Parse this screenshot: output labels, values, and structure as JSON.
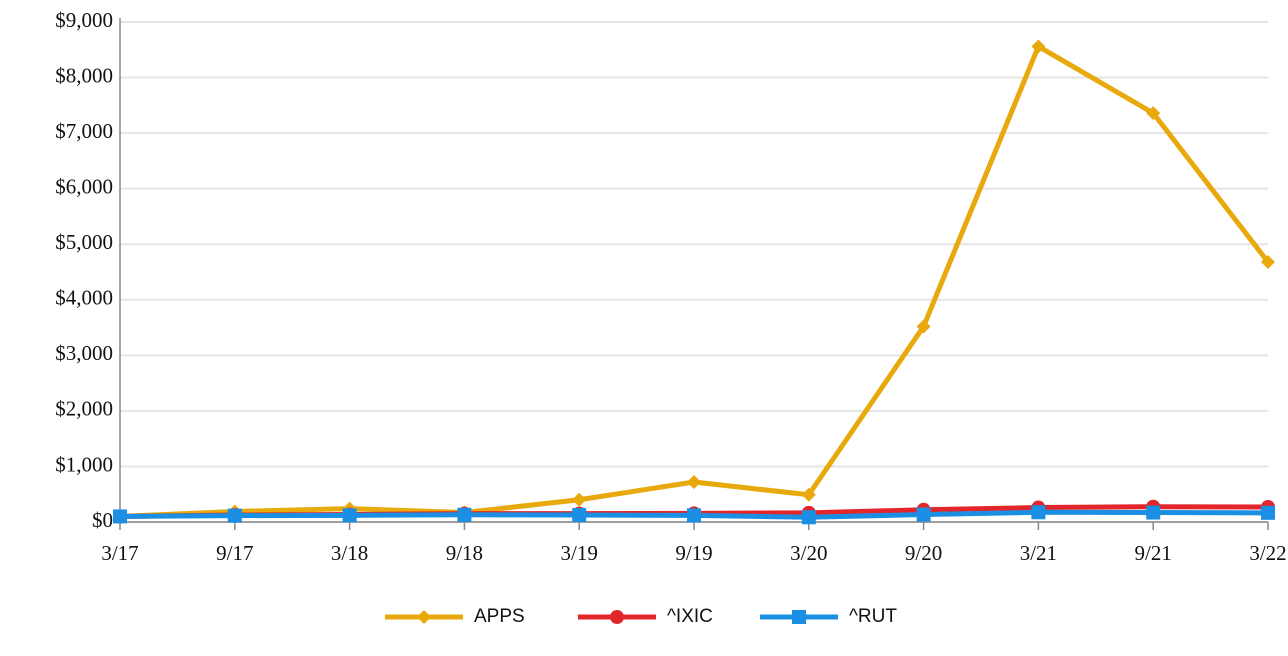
{
  "chart_data": {
    "type": "line",
    "categories": [
      "3/17",
      "9/17",
      "3/18",
      "9/18",
      "3/19",
      "9/19",
      "3/20",
      "9/20",
      "3/21",
      "9/21",
      "3/22"
    ],
    "series": [
      {
        "name": "APPS",
        "color": "#e8a90c",
        "marker": "diamond",
        "values": [
          100,
          190,
          240,
          170,
          400,
          720,
          490,
          3520,
          8560,
          7360,
          4680
        ]
      },
      {
        "name": "^IXIC",
        "color": "#e3262b",
        "marker": "circle",
        "values": [
          100,
          125,
          135,
          150,
          150,
          155,
          165,
          220,
          260,
          275,
          270
        ]
      },
      {
        "name": "^RUT",
        "color": "#1a8fe3",
        "marker": "square",
        "values": [
          100,
          115,
          120,
          130,
          125,
          120,
          85,
          135,
          175,
          170,
          165
        ]
      }
    ],
    "ylim": [
      0,
      9000
    ],
    "yticks": [
      {
        "value": 0,
        "label": "$0"
      },
      {
        "value": 1000,
        "label": "$1,000"
      },
      {
        "value": 2000,
        "label": "$2,000"
      },
      {
        "value": 3000,
        "label": "$3,000"
      },
      {
        "value": 4000,
        "label": "$4,000"
      },
      {
        "value": 5000,
        "label": "$5,000"
      },
      {
        "value": 6000,
        "label": "$6,000"
      },
      {
        "value": 7000,
        "label": "$7,000"
      },
      {
        "value": 8000,
        "label": "$8,000"
      },
      {
        "value": 9000,
        "label": "$9,000"
      }
    ],
    "grid": true,
    "legend": "bottom"
  }
}
